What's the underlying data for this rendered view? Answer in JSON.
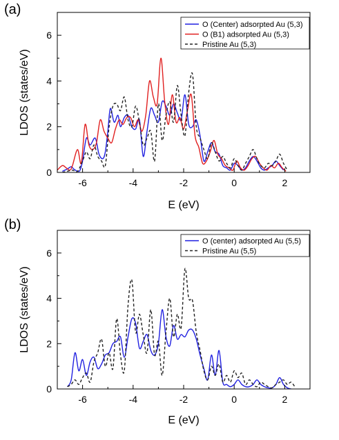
{
  "chart_data": [
    {
      "type": "line",
      "panel_label": "(a)",
      "xlabel": "E (eV)",
      "ylabel": "LDOS (states/eV)",
      "xlim": [
        -7,
        3
      ],
      "ylim": [
        0,
        7
      ],
      "xticks": [
        -6,
        -4,
        -2,
        0,
        2
      ],
      "yticks": [
        0,
        2,
        4,
        6
      ],
      "legend_position": "top-right",
      "series": [
        {
          "name": "O (Center) adsorpted Au (5,3)",
          "color": "#1f1fe0",
          "style": "solid",
          "x": [
            -6.8,
            -6.6,
            -6.45,
            -6.35,
            -6.2,
            -6.1,
            -6.0,
            -5.85,
            -5.7,
            -5.5,
            -5.35,
            -5.2,
            -5.1,
            -5.0,
            -4.9,
            -4.75,
            -4.6,
            -4.5,
            -4.35,
            -4.2,
            -4.05,
            -3.9,
            -3.75,
            -3.6,
            -3.45,
            -3.3,
            -3.15,
            -3.0,
            -2.85,
            -2.7,
            -2.55,
            -2.4,
            -2.25,
            -2.1,
            -1.95,
            -1.8,
            -1.65,
            -1.5,
            -1.35,
            -1.2,
            -1.05,
            -0.9,
            -0.75,
            -0.6,
            -0.45,
            -0.3,
            -0.15,
            0.0,
            0.15,
            0.3,
            0.45,
            0.6,
            0.75,
            0.9,
            1.05,
            1.2,
            1.35,
            1.5,
            1.65,
            1.8,
            1.95
          ],
          "values": [
            0.05,
            0.15,
            0.25,
            0.15,
            0.05,
            0.1,
            0.5,
            1.5,
            1.2,
            1.5,
            0.8,
            0.6,
            0.9,
            1.8,
            2.8,
            2.2,
            2.5,
            2.0,
            2.4,
            2.5,
            2.0,
            1.9,
            2.3,
            0.7,
            1.8,
            2.8,
            2.5,
            2.2,
            3.1,
            2.9,
            2.5,
            3.0,
            2.6,
            2.3,
            3.4,
            2.1,
            2.0,
            2.3,
            1.6,
            0.5,
            0.9,
            1.3,
            0.9,
            0.8,
            0.3,
            0.2,
            0.1,
            0.4,
            0.3,
            0.1,
            0.2,
            0.5,
            0.7,
            0.5,
            0.2,
            0.1,
            0.2,
            0.3,
            0.5,
            0.3,
            0.1
          ]
        },
        {
          "name": "O (B1) adsorpted Au (5,3)",
          "color": "#e01f1f",
          "style": "solid",
          "x": [
            -7.0,
            -6.8,
            -6.65,
            -6.5,
            -6.4,
            -6.2,
            -6.05,
            -5.9,
            -5.75,
            -5.6,
            -5.45,
            -5.3,
            -5.15,
            -5.0,
            -4.85,
            -4.7,
            -4.55,
            -4.4,
            -4.25,
            -4.1,
            -3.95,
            -3.8,
            -3.65,
            -3.5,
            -3.35,
            -3.2,
            -3.05,
            -2.9,
            -2.75,
            -2.6,
            -2.45,
            -2.3,
            -2.15,
            -2.0,
            -1.85,
            -1.7,
            -1.55,
            -1.4,
            -1.25,
            -1.1,
            -0.95,
            -0.8,
            -0.65,
            -0.5,
            -0.35,
            -0.2,
            -0.05,
            0.1,
            0.25,
            0.4,
            0.55,
            0.7,
            0.85,
            1.0,
            1.15,
            1.3,
            1.45,
            1.6,
            1.75,
            1.9,
            2.05
          ],
          "values": [
            0.1,
            0.3,
            0.2,
            0.1,
            0.3,
            1.0,
            0.4,
            2.1,
            1.2,
            1.0,
            1.3,
            2.3,
            1.8,
            1.5,
            1.3,
            1.9,
            2.3,
            2.1,
            2.4,
            2.4,
            2.0,
            2.3,
            1.8,
            2.5,
            4.0,
            3.3,
            3.0,
            5.0,
            3.1,
            2.1,
            3.4,
            2.2,
            2.4,
            1.9,
            2.7,
            3.4,
            1.6,
            1.1,
            0.4,
            0.5,
            0.9,
            1.4,
            0.8,
            0.6,
            0.3,
            0.2,
            0.1,
            0.5,
            0.2,
            0.1,
            0.3,
            0.6,
            0.7,
            0.4,
            0.2,
            0.1,
            0.3,
            0.2,
            0.4,
            0.2,
            0.05
          ]
        },
        {
          "name": "Pristine Au (5,3)",
          "color": "#222222",
          "style": "dashed",
          "x": [
            -6.8,
            -6.6,
            -6.4,
            -6.2,
            -6.0,
            -5.85,
            -5.7,
            -5.55,
            -5.4,
            -5.25,
            -5.1,
            -4.95,
            -4.8,
            -4.65,
            -4.5,
            -4.35,
            -4.2,
            -4.05,
            -3.9,
            -3.75,
            -3.6,
            -3.45,
            -3.3,
            -3.15,
            -3.0,
            -2.85,
            -2.7,
            -2.55,
            -2.4,
            -2.25,
            -2.1,
            -1.95,
            -1.8,
            -1.65,
            -1.5,
            -1.35,
            -1.2,
            -1.05,
            -0.9,
            -0.75,
            -0.6,
            -0.45,
            -0.3,
            -0.15,
            0.0,
            0.15,
            0.3,
            0.45,
            0.6,
            0.75,
            0.9,
            1.05,
            1.2,
            1.35,
            1.5,
            1.65,
            1.8,
            1.95,
            2.1
          ],
          "values": [
            0.0,
            0.05,
            0.1,
            0.05,
            0.5,
            0.9,
            0.6,
            1.2,
            0.7,
            0.5,
            0.3,
            2.0,
            2.9,
            3.0,
            2.7,
            3.3,
            2.3,
            2.0,
            2.9,
            2.2,
            1.2,
            1.5,
            1.8,
            0.5,
            3.0,
            1.4,
            2.5,
            3.1,
            2.2,
            3.8,
            2.5,
            1.6,
            3.5,
            4.3,
            2.0,
            1.5,
            1.0,
            0.6,
            1.3,
            0.9,
            0.5,
            0.7,
            0.4,
            0.2,
            0.6,
            0.3,
            0.1,
            0.4,
            0.7,
            1.0,
            0.6,
            0.3,
            0.2,
            0.4,
            0.3,
            0.5,
            0.8,
            0.4,
            0.1
          ]
        }
      ]
    },
    {
      "type": "line",
      "panel_label": "(b)",
      "xlabel": "E (eV)",
      "ylabel": "LDOS (states/eV)",
      "xlim": [
        -7,
        3
      ],
      "ylim": [
        0,
        7
      ],
      "xticks": [
        -6,
        -4,
        -2,
        0,
        2
      ],
      "yticks": [
        0,
        2,
        4,
        6
      ],
      "legend_position": "top-right",
      "series": [
        {
          "name": "O (center) adsorpted Au (5,5)",
          "color": "#1f1fe0",
          "style": "solid",
          "x": [
            -6.6,
            -6.45,
            -6.3,
            -6.15,
            -6.0,
            -5.85,
            -5.7,
            -5.55,
            -5.4,
            -5.25,
            -5.1,
            -4.95,
            -4.8,
            -4.65,
            -4.5,
            -4.35,
            -4.2,
            -4.05,
            -3.9,
            -3.75,
            -3.6,
            -3.45,
            -3.3,
            -3.15,
            -3.0,
            -2.85,
            -2.7,
            -2.55,
            -2.4,
            -2.25,
            -2.1,
            -1.95,
            -1.8,
            -1.65,
            -1.5,
            -1.35,
            -1.2,
            -1.05,
            -0.9,
            -0.75,
            -0.6,
            -0.45,
            -0.3,
            -0.15,
            0.0,
            0.15,
            0.3,
            0.45,
            0.6,
            0.75,
            0.9,
            1.05,
            1.2,
            1.35,
            1.5,
            1.65,
            1.8,
            1.95,
            2.1,
            2.25
          ],
          "values": [
            0.1,
            0.4,
            1.6,
            0.8,
            1.3,
            0.6,
            1.2,
            1.4,
            0.9,
            1.1,
            1.5,
            1.6,
            2.0,
            2.1,
            2.3,
            1.4,
            2.3,
            3.1,
            2.9,
            1.8,
            2.1,
            2.4,
            1.7,
            1.5,
            2.0,
            3.5,
            2.3,
            1.9,
            2.8,
            2.2,
            2.4,
            2.3,
            2.6,
            2.6,
            2.2,
            1.5,
            0.9,
            0.4,
            1.5,
            0.6,
            1.7,
            0.3,
            0.2,
            0.1,
            0.2,
            0.4,
            0.2,
            0.1,
            0.1,
            0.2,
            0.4,
            0.2,
            0.1,
            0.05,
            0.05,
            0.2,
            0.5,
            0.2,
            0.05,
            0.0
          ]
        },
        {
          "name": "Pristine Au (5,5)",
          "color": "#222222",
          "style": "dashed",
          "x": [
            -6.6,
            -6.45,
            -6.3,
            -6.15,
            -6.0,
            -5.85,
            -5.7,
            -5.55,
            -5.4,
            -5.25,
            -5.1,
            -4.95,
            -4.8,
            -4.65,
            -4.5,
            -4.35,
            -4.2,
            -4.05,
            -3.9,
            -3.75,
            -3.6,
            -3.45,
            -3.3,
            -3.15,
            -3.0,
            -2.85,
            -2.7,
            -2.55,
            -2.4,
            -2.25,
            -2.1,
            -1.95,
            -1.8,
            -1.65,
            -1.5,
            -1.35,
            -1.2,
            -1.05,
            -0.9,
            -0.75,
            -0.6,
            -0.45,
            -0.3,
            -0.15,
            0.0,
            0.15,
            0.3,
            0.45,
            0.6,
            0.75,
            0.9,
            1.05,
            1.2,
            1.35,
            1.5,
            1.65,
            1.8,
            1.95,
            2.1,
            2.25,
            2.4
          ],
          "values": [
            0.1,
            0.2,
            0.4,
            0.2,
            0.5,
            0.7,
            0.3,
            1.2,
            1.6,
            2.2,
            1.0,
            1.6,
            0.9,
            3.1,
            1.5,
            0.8,
            3.7,
            4.8,
            2.5,
            3.3,
            2.4,
            1.6,
            3.5,
            1.5,
            2.1,
            0.6,
            2.5,
            4.0,
            2.3,
            3.3,
            2.7,
            5.3,
            4.0,
            3.9,
            2.5,
            1.7,
            0.8,
            0.4,
            1.0,
            0.6,
            1.1,
            0.3,
            0.6,
            0.3,
            0.8,
            0.5,
            0.7,
            0.2,
            0.4,
            0.2,
            0.1,
            0.3,
            0.2,
            0.1,
            0.05,
            0.2,
            0.3,
            0.4,
            0.2,
            0.3,
            0.1
          ]
        }
      ]
    }
  ]
}
